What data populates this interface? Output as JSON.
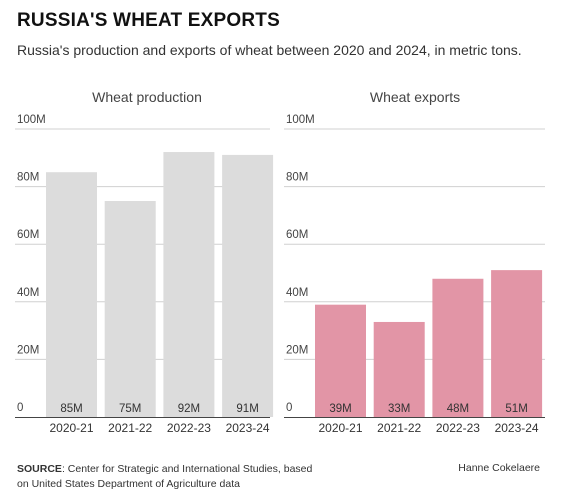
{
  "title": "RUSSIA'S WHEAT EXPORTS",
  "subtitle": "Russia's production and exports of wheat between 2020 and 2024, in metric tons.",
  "footer": {
    "source_label": "SOURCE",
    "source_text": ": Center for Strategic and International Studies, based on United States Department of Agriculture data",
    "author": "Hanne Cokelaere"
  },
  "colors": {
    "production": "#dcdcdc",
    "exports": "#e295a6",
    "grid": "#d0d0d0",
    "axis": "#444444"
  },
  "chart_data": [
    {
      "type": "bar",
      "title": "Wheat production",
      "categories": [
        "2020-21",
        "2021-22",
        "2022-23",
        "2023-24"
      ],
      "values": [
        85,
        75,
        92,
        91
      ],
      "value_labels": [
        "85M",
        "75M",
        "92M",
        "91M"
      ],
      "unit": "M",
      "ylim": [
        0,
        100
      ],
      "yticks": [
        0,
        20,
        40,
        60,
        80,
        100
      ],
      "ytick_labels": [
        "0",
        "20M",
        "40M",
        "60M",
        "80M",
        "100M"
      ],
      "grid": true,
      "color": "#dcdcdc"
    },
    {
      "type": "bar",
      "title": "Wheat exports",
      "categories": [
        "2020-21",
        "2021-22",
        "2022-23",
        "2023-24"
      ],
      "values": [
        39,
        33,
        48,
        51
      ],
      "value_labels": [
        "39M",
        "33M",
        "48M",
        "51M"
      ],
      "unit": "M",
      "ylim": [
        0,
        100
      ],
      "yticks": [
        0,
        20,
        40,
        60,
        80,
        100
      ],
      "ytick_labels": [
        "0",
        "20M",
        "40M",
        "60M",
        "80M",
        "100M"
      ],
      "grid": true,
      "color": "#e295a6"
    }
  ]
}
